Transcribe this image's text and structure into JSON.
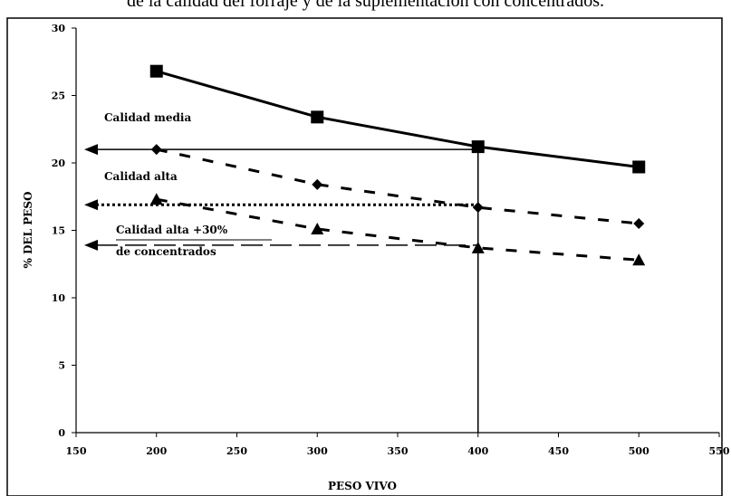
{
  "caption": "de la calidad del forraje y de la suplementación con concentrados.",
  "chart_data": {
    "type": "line",
    "xlabel": "PESO VIVO",
    "ylabel": "% DEL PESO",
    "xlim": [
      150,
      550
    ],
    "ylim": [
      0,
      30
    ],
    "x_ticks": [
      "150",
      "200",
      "250",
      "300",
      "350",
      "400",
      "450",
      "500",
      "550"
    ],
    "y_ticks": [
      "0",
      "5",
      "10",
      "15",
      "20",
      "25",
      "30"
    ],
    "grid": false,
    "legend": "none",
    "x": [
      200,
      300,
      400,
      500
    ],
    "series": [
      {
        "values": [
          26.8,
          23.4,
          21.2,
          19.7
        ],
        "line": "solid",
        "marker": "square"
      },
      {
        "values": [
          21.0,
          18.4,
          16.7,
          15.5
        ],
        "line": "dashed",
        "marker": "diamond"
      },
      {
        "values": [
          17.3,
          15.1,
          13.7,
          12.8
        ],
        "line": "dashed",
        "marker": "triangle"
      }
    ],
    "annotations": {
      "media": "Calidad media",
      "alta": "Calidad alta",
      "alta30_line1": "Calidad alta +30%",
      "alta30_line2": "de concentrados"
    },
    "reference_lines": {
      "vertical_x": 400,
      "arrows_y": [
        21.0,
        16.9,
        13.9
      ]
    }
  }
}
